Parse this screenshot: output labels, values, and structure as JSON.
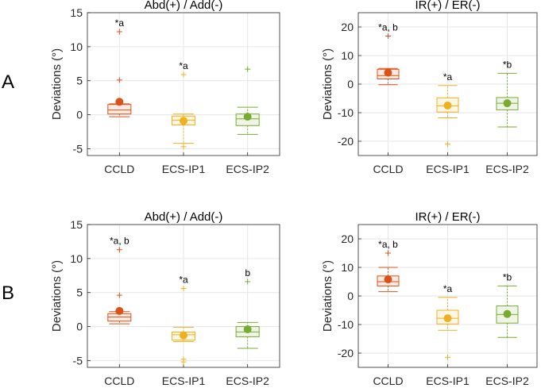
{
  "panel_labels": [
    "A",
    "B"
  ],
  "colors": {
    "CCLD": "#d95319",
    "ECS-IP1": "#edb120",
    "ECS-IP2": "#77ac30",
    "axis": "#262626",
    "grid": "#e6e6e6"
  },
  "chart_data": [
    {
      "type": "box",
      "panel": "A",
      "title": "Abd(+) / Add(-)",
      "ylabel": "Deviations (°)",
      "xlabel": "",
      "ylim": [
        -6,
        15
      ],
      "yticks": [
        -5,
        0,
        5,
        10,
        15
      ],
      "categories": [
        "CCLD",
        "ECS-IP1",
        "ECS-IP2"
      ],
      "boxes": [
        {
          "q1": 0.1,
          "median": 0.7,
          "q3": 1.5,
          "whisker_low": -0.3,
          "whisker_high": 1.6,
          "mean": 1.9,
          "outliers": [
            12.2,
            5.1
          ],
          "annotation": "*a"
        },
        {
          "q1": -1.5,
          "median": -0.8,
          "q3": -0.2,
          "whisker_low": -4.2,
          "whisker_high": 0.1,
          "mean": -0.9,
          "outliers": [
            5.9,
            -4.7
          ],
          "annotation": "*a"
        },
        {
          "q1": -1.6,
          "median": -0.6,
          "q3": 0.1,
          "whisker_low": -2.9,
          "whisker_high": 1.1,
          "mean": -0.3,
          "outliers": [
            6.7
          ],
          "annotation": ""
        }
      ]
    },
    {
      "type": "box",
      "panel": "A",
      "title": "IR(+) / ER(-)",
      "ylabel": "Deviations (°)",
      "xlabel": "",
      "ylim": [
        -25,
        25
      ],
      "yticks": [
        -20,
        -10,
        0,
        10,
        20
      ],
      "categories": [
        "CCLD",
        "ECS-IP1",
        "ECS-IP2"
      ],
      "boxes": [
        {
          "q1": 1.8,
          "median": 3.0,
          "q3": 5.2,
          "whisker_low": -0.2,
          "whisker_high": 5.5,
          "mean": 4.0,
          "outliers": [
            16.8
          ],
          "annotation": "*a, b"
        },
        {
          "q1": -9.8,
          "median": -7.6,
          "q3": -4.8,
          "whisker_low": -11.8,
          "whisker_high": -0.5,
          "mean": -7.5,
          "outliers": [
            -21.0
          ],
          "annotation": "*a"
        },
        {
          "q1": -9.0,
          "median": -6.7,
          "q3": -4.7,
          "whisker_low": -15.0,
          "whisker_high": 3.8,
          "mean": -6.7,
          "outliers": [],
          "annotation": "*b"
        }
      ]
    },
    {
      "type": "box",
      "panel": "B",
      "title": "Abd(+) / Add(-)",
      "ylabel": "Deviations (°)",
      "xlabel": "",
      "ylim": [
        -6,
        15
      ],
      "yticks": [
        -5,
        0,
        5,
        10,
        15
      ],
      "categories": [
        "CCLD",
        "ECS-IP1",
        "ECS-IP2"
      ],
      "boxes": [
        {
          "q1": 0.8,
          "median": 1.4,
          "q3": 1.9,
          "whisker_low": 0.4,
          "whisker_high": 2.2,
          "mean": 2.3,
          "outliers": [
            11.3,
            4.6
          ],
          "annotation": "*a, b"
        },
        {
          "q1": -2.0,
          "median": -1.2,
          "q3": -0.8,
          "whisker_low": -2.2,
          "whisker_high": -0.1,
          "mean": -1.3,
          "outliers": [
            5.6,
            -4.8,
            -5.2
          ],
          "annotation": "*a"
        },
        {
          "q1": -1.5,
          "median": -0.8,
          "q3": 0.0,
          "whisker_low": -3.2,
          "whisker_high": 0.6,
          "mean": -0.4,
          "outliers": [
            6.6
          ],
          "annotation": "b"
        }
      ]
    },
    {
      "type": "box",
      "panel": "B",
      "title": "IR(+) / ER(-)",
      "ylabel": "Deviations (°)",
      "xlabel": "",
      "ylim": [
        -25,
        25
      ],
      "yticks": [
        -20,
        -10,
        0,
        10,
        20
      ],
      "categories": [
        "CCLD",
        "ECS-IP1",
        "ECS-IP2"
      ],
      "boxes": [
        {
          "q1": 3.5,
          "median": 5.0,
          "q3": 7.0,
          "whisker_low": 1.5,
          "whisker_high": 10.0,
          "mean": 5.8,
          "outliers": [
            15.0
          ],
          "annotation": "*a, b"
        },
        {
          "q1": -9.8,
          "median": -7.8,
          "q3": -5.0,
          "whisker_low": -12.0,
          "whisker_high": -0.5,
          "mean": -7.8,
          "outliers": [
            -21.5
          ],
          "annotation": "*a"
        },
        {
          "q1": -9.5,
          "median": -6.5,
          "q3": -3.5,
          "whisker_low": -14.5,
          "whisker_high": 3.5,
          "mean": -6.3,
          "outliers": [],
          "annotation": "*b"
        }
      ]
    }
  ]
}
